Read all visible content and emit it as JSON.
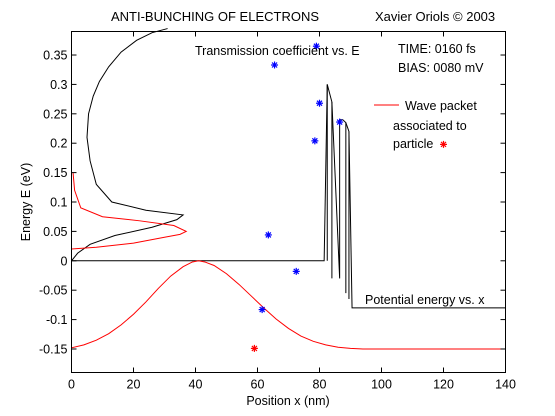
{
  "header": {
    "title": "ANTI-BUNCHING OF ELECTRONS",
    "author": "Xavier Oriols  ©  2003"
  },
  "annotations": {
    "transmission_label": "Transmission coefficient vs. E",
    "time_label": "TIME:  0160   fs",
    "bias_label": "BIAS:  0080   mV",
    "legend_line1": "Wave packet",
    "legend_line2": "associated to",
    "legend_line3": "particle",
    "potential_label": "Potential energy vs. x"
  },
  "colors": {
    "wave": "#ff0000",
    "particles": "#0000ff",
    "highlight_particle": "#ff0000",
    "curves": "#000000"
  },
  "chart_data": {
    "type": "line",
    "xlabel": "Position x (nm)",
    "ylabel": "Energy E (eV)",
    "xlim": [
      0,
      140
    ],
    "ylim": [
      -0.19,
      0.39
    ],
    "xticks": [
      0,
      20,
      40,
      60,
      80,
      100,
      120,
      140
    ],
    "yticks": [
      -0.15,
      -0.1,
      -0.05,
      0,
      0.05,
      0.1,
      0.15,
      0.2,
      0.25,
      0.3,
      0.35
    ],
    "ytick_labels": [
      "-0.15",
      "-0.1",
      "-0.05",
      "0",
      "0.05",
      "0.1",
      "0.15",
      "0.2",
      "0.25",
      "0.3",
      "0.35"
    ],
    "series": [
      {
        "role": "potential",
        "color": "#000000",
        "x": [
          0,
          81.5,
          82.5,
          84,
          86.5,
          86.5,
          87.5,
          88.5,
          89.5,
          90.5,
          140
        ],
        "y": [
          0,
          0,
          0.3,
          0.27,
          -0.03,
          0.24,
          0.24,
          0.235,
          0.22,
          -0.08,
          -0.08
        ],
        "extra_segments": [
          {
            "x": [
              82.5,
              82.5
            ],
            "y": [
              0,
              0.3
            ]
          },
          {
            "x": [
              84,
              84
            ],
            "y": [
              0.27,
              -0.03
            ]
          },
          {
            "x": [
              88.5,
              88.5
            ],
            "y": [
              0.235,
              -0.055
            ]
          },
          {
            "x": [
              89.5,
              89.5
            ],
            "y": [
              0.22,
              -0.065
            ]
          }
        ]
      },
      {
        "role": "transmission",
        "color": "#000000",
        "x": [
          0,
          2,
          6,
          14,
          26,
          34,
          36,
          24,
          13,
          8,
          6,
          5,
          5.5,
          7,
          9,
          12,
          16,
          21,
          26,
          31
        ],
        "y": [
          0,
          0.013,
          0.028,
          0.043,
          0.057,
          0.07,
          0.078,
          0.086,
          0.1,
          0.13,
          0.17,
          0.21,
          0.25,
          0.28,
          0.305,
          0.33,
          0.355,
          0.375,
          0.388,
          0.395
        ]
      },
      {
        "role": "wave_packet_energy",
        "color": "#ff0000",
        "x": [
          0,
          8,
          20,
          30,
          35,
          37,
          33,
          22,
          10,
          3,
          1,
          0.5
        ],
        "y": [
          0.02,
          0.023,
          0.03,
          0.04,
          0.045,
          0.05,
          0.06,
          0.068,
          0.075,
          0.09,
          0.12,
          0.15
        ]
      },
      {
        "role": "wave_packet_position",
        "color": "#ff0000",
        "x": [
          0,
          4,
          8,
          12,
          16,
          20,
          24,
          28,
          32,
          36,
          39,
          41,
          43,
          46,
          50,
          54,
          58,
          62,
          66,
          70,
          74,
          78,
          82,
          86,
          90,
          94,
          100,
          110,
          120,
          130,
          140
        ],
        "y": [
          -0.148,
          -0.143,
          -0.135,
          -0.124,
          -0.109,
          -0.091,
          -0.07,
          -0.047,
          -0.026,
          -0.01,
          -0.002,
          0.0,
          -0.002,
          -0.008,
          -0.022,
          -0.04,
          -0.06,
          -0.08,
          -0.099,
          -0.115,
          -0.128,
          -0.137,
          -0.143,
          -0.147,
          -0.149,
          -0.15,
          -0.15,
          -0.15,
          -0.15,
          -0.15,
          -0.15
        ]
      }
    ],
    "particles": [
      {
        "x": 79,
        "y": 0.365,
        "color": "#0000ff"
      },
      {
        "x": 65.5,
        "y": 0.333,
        "color": "#0000ff"
      },
      {
        "x": 80,
        "y": 0.268,
        "color": "#0000ff"
      },
      {
        "x": 86.5,
        "y": 0.236,
        "color": "#0000ff"
      },
      {
        "x": 78.5,
        "y": 0.204,
        "color": "#0000ff"
      },
      {
        "x": 63.5,
        "y": 0.044,
        "color": "#0000ff"
      },
      {
        "x": 72.5,
        "y": -0.018,
        "color": "#0000ff"
      },
      {
        "x": 61.5,
        "y": -0.083,
        "color": "#0000ff"
      },
      {
        "x": 59,
        "y": -0.149,
        "color": "#ff0000"
      }
    ],
    "legend_marker": {
      "x": 120,
      "y": 0.198,
      "color": "#ff0000"
    }
  }
}
